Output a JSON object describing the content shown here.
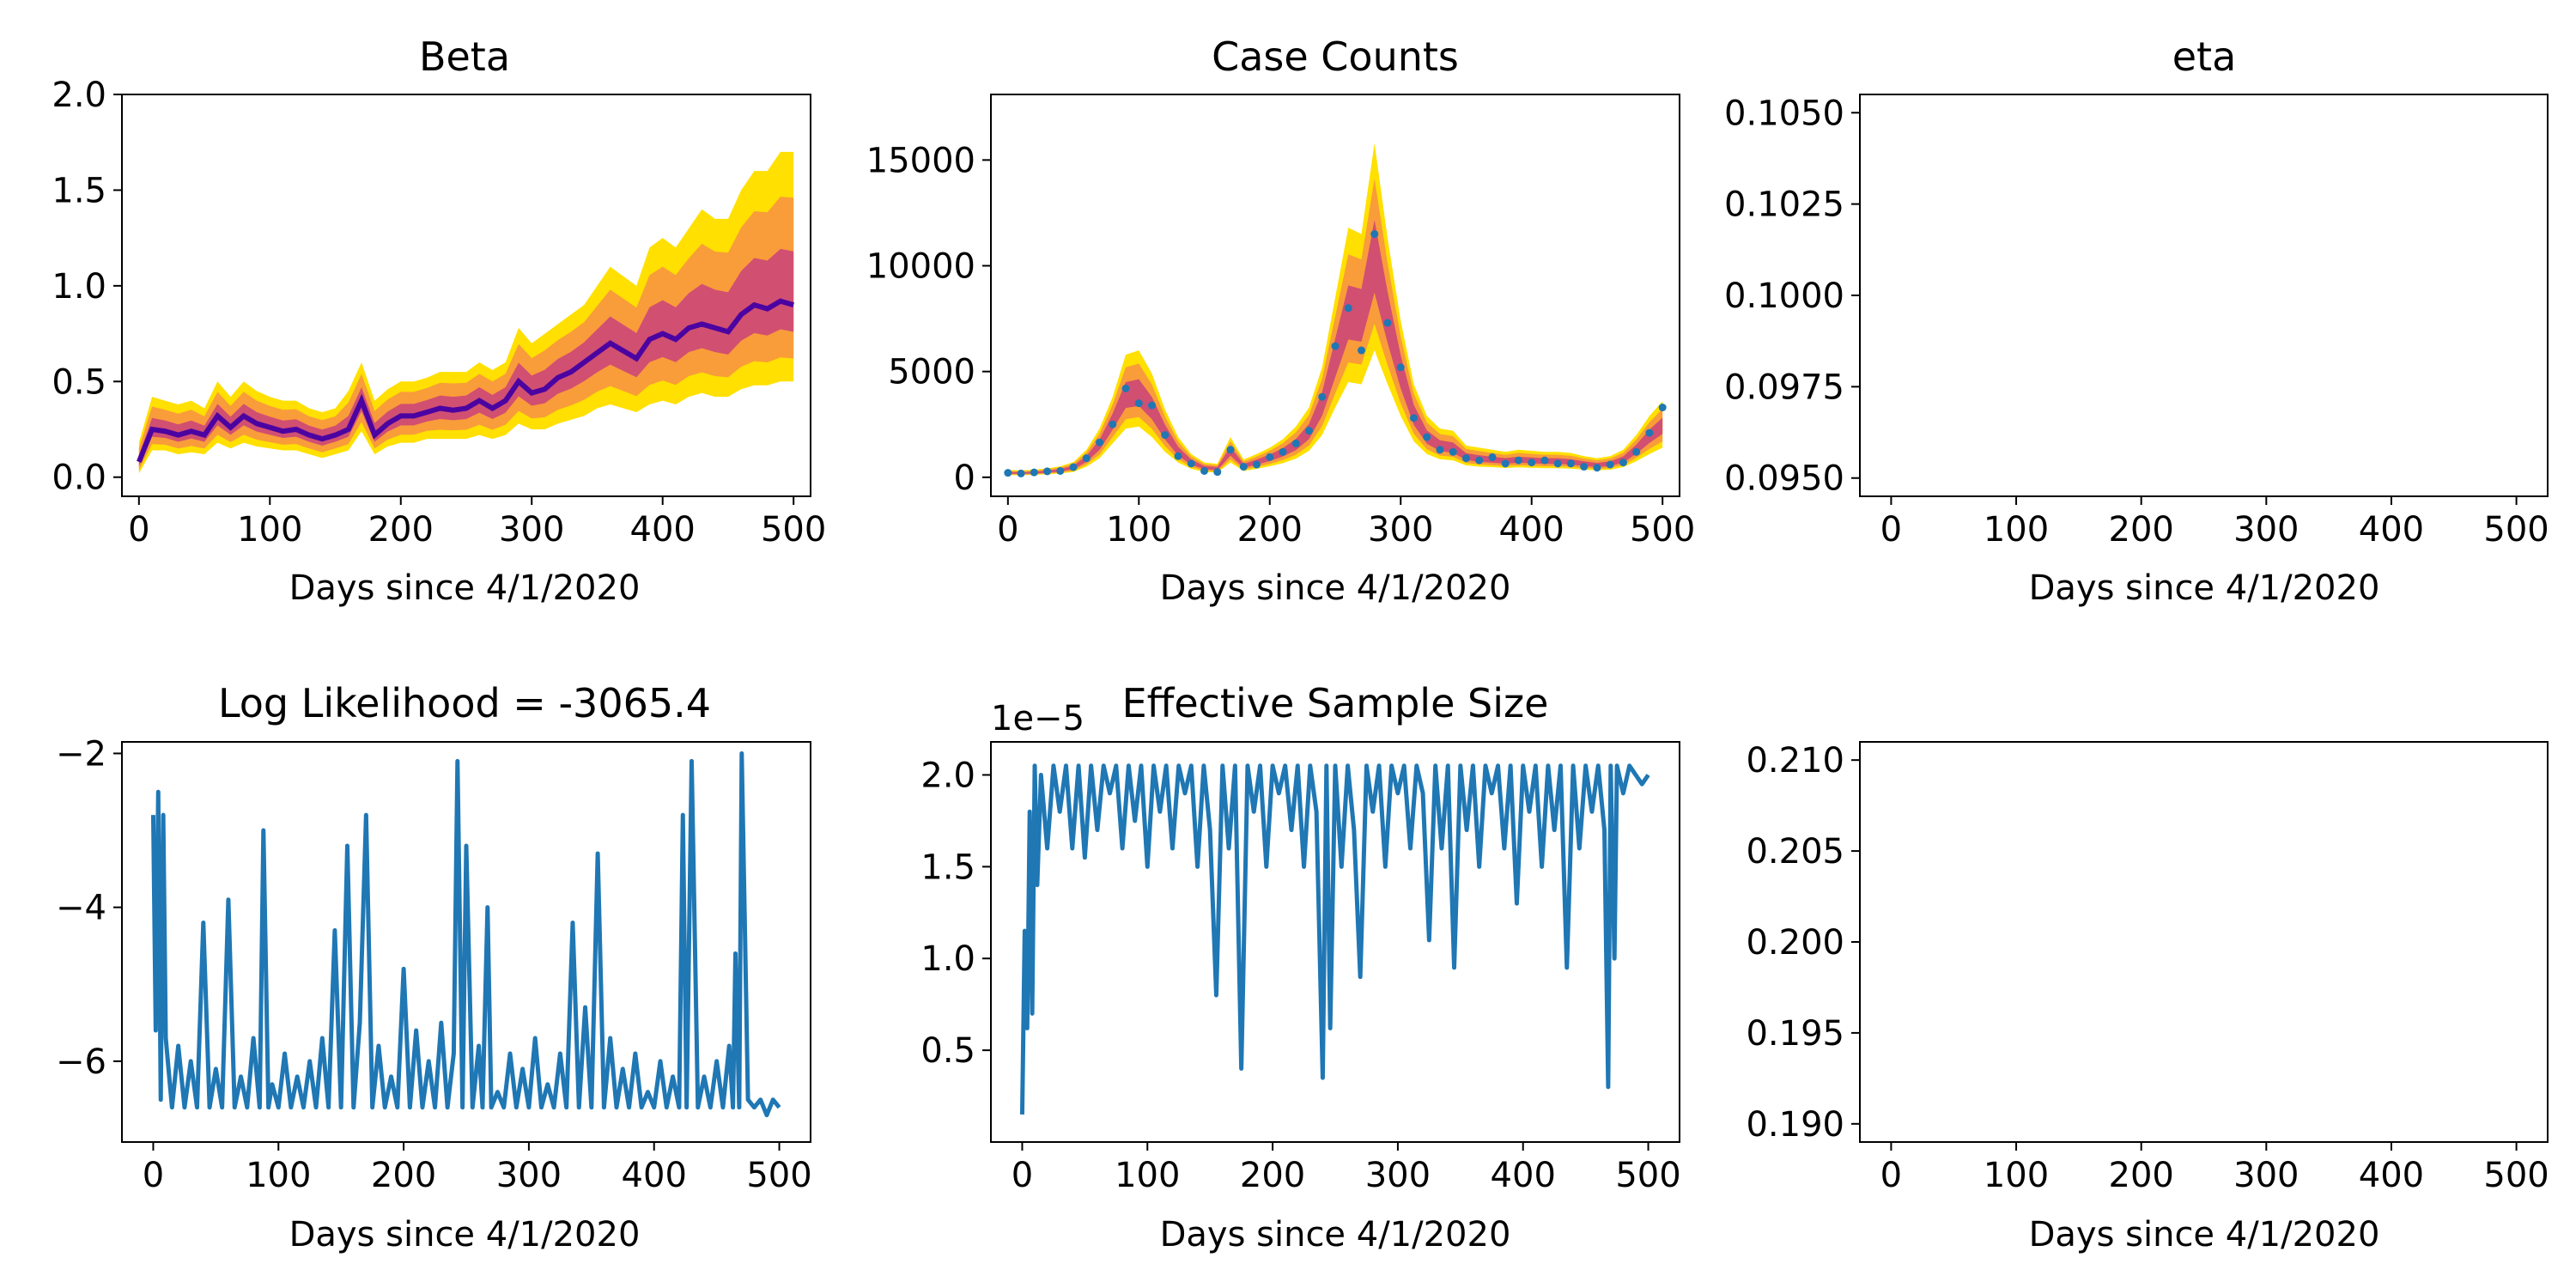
{
  "chart_data": [
    {
      "id": "beta",
      "type": "area",
      "title": "Beta",
      "xlabel": "Days since 4/1/2020",
      "ylabel": "",
      "xlim": [
        -13,
        513
      ],
      "ylim": [
        -0.1,
        2.0
      ],
      "xticks": [
        0,
        100,
        200,
        300,
        400,
        500
      ],
      "yticks": [
        0.0,
        0.5,
        1.0,
        1.5,
        2.0
      ],
      "ytick_labels": [
        "0.0",
        "0.5",
        "1.0",
        "1.5",
        "2.0"
      ],
      "grid": false,
      "colors": {
        "band_outer": "#ffe000",
        "band_mid": "#f89540",
        "band_inner": "#cc4778",
        "median": "#4b03a1"
      },
      "x": [
        0,
        10,
        20,
        30,
        40,
        50,
        60,
        70,
        80,
        90,
        100,
        110,
        120,
        130,
        140,
        150,
        160,
        170,
        180,
        190,
        200,
        210,
        220,
        230,
        240,
        250,
        260,
        270,
        280,
        290,
        300,
        310,
        320,
        330,
        340,
        350,
        360,
        370,
        380,
        390,
        400,
        410,
        420,
        430,
        440,
        450,
        460,
        470,
        480,
        490,
        500
      ],
      "series": [
        {
          "role": "upper",
          "values": [
            0.18,
            0.42,
            0.4,
            0.38,
            0.4,
            0.36,
            0.5,
            0.42,
            0.5,
            0.45,
            0.42,
            0.4,
            0.4,
            0.36,
            0.34,
            0.36,
            0.45,
            0.6,
            0.4,
            0.46,
            0.5,
            0.5,
            0.52,
            0.55,
            0.55,
            0.55,
            0.6,
            0.56,
            0.6,
            0.78,
            0.7,
            0.75,
            0.8,
            0.85,
            0.9,
            1.0,
            1.1,
            1.05,
            1.0,
            1.2,
            1.25,
            1.2,
            1.3,
            1.4,
            1.35,
            1.35,
            1.5,
            1.6,
            1.6,
            1.7,
            1.7
          ]
        },
        {
          "role": "median",
          "values": [
            0.08,
            0.25,
            0.24,
            0.22,
            0.24,
            0.22,
            0.32,
            0.26,
            0.32,
            0.28,
            0.26,
            0.24,
            0.25,
            0.22,
            0.2,
            0.22,
            0.25,
            0.4,
            0.22,
            0.28,
            0.32,
            0.32,
            0.34,
            0.36,
            0.35,
            0.36,
            0.4,
            0.36,
            0.4,
            0.5,
            0.44,
            0.46,
            0.52,
            0.55,
            0.6,
            0.65,
            0.7,
            0.66,
            0.62,
            0.72,
            0.75,
            0.72,
            0.78,
            0.8,
            0.78,
            0.76,
            0.85,
            0.9,
            0.88,
            0.92,
            0.9
          ]
        },
        {
          "role": "lower",
          "values": [
            0.02,
            0.14,
            0.14,
            0.12,
            0.13,
            0.12,
            0.18,
            0.15,
            0.18,
            0.16,
            0.15,
            0.14,
            0.14,
            0.12,
            0.1,
            0.12,
            0.14,
            0.24,
            0.12,
            0.16,
            0.18,
            0.18,
            0.2,
            0.2,
            0.2,
            0.2,
            0.22,
            0.2,
            0.22,
            0.28,
            0.25,
            0.25,
            0.28,
            0.3,
            0.32,
            0.36,
            0.38,
            0.36,
            0.34,
            0.38,
            0.4,
            0.38,
            0.42,
            0.44,
            0.42,
            0.42,
            0.46,
            0.48,
            0.48,
            0.5,
            0.5
          ]
        }
      ]
    },
    {
      "id": "cases",
      "type": "scatter",
      "title": "Case Counts",
      "xlabel": "Days since 4/1/2020",
      "ylabel": "",
      "xlim": [
        -13,
        513
      ],
      "ylim": [
        -900,
        18100
      ],
      "xticks": [
        0,
        100,
        200,
        300,
        400,
        500
      ],
      "yticks": [
        0,
        5000,
        10000,
        15000
      ],
      "ytick_labels": [
        "0",
        "5000",
        "10000",
        "15000"
      ],
      "grid": false,
      "colors": {
        "band_outer": "#ffe000",
        "band_mid": "#f89540",
        "band_inner": "#cc4778",
        "points": "#1f77b4"
      },
      "x": [
        0,
        10,
        20,
        30,
        40,
        50,
        60,
        70,
        80,
        90,
        100,
        110,
        120,
        130,
        140,
        150,
        160,
        170,
        180,
        190,
        200,
        210,
        220,
        230,
        240,
        250,
        260,
        270,
        280,
        290,
        300,
        310,
        320,
        330,
        340,
        350,
        360,
        370,
        380,
        390,
        400,
        410,
        420,
        430,
        440,
        450,
        460,
        470,
        480,
        490,
        500
      ],
      "series": [
        {
          "role": "upper",
          "values": [
            350,
            330,
            360,
            420,
            520,
            720,
            1300,
            2300,
            3800,
            5800,
            6000,
            4900,
            3200,
            1900,
            1100,
            700,
            640,
            1900,
            840,
            1100,
            1400,
            1800,
            2400,
            3300,
            5200,
            8500,
            11800,
            11500,
            15800,
            11300,
            7400,
            4400,
            2900,
            2300,
            2200,
            1500,
            1400,
            1300,
            1200,
            1300,
            1250,
            1200,
            1200,
            1150,
            1000,
            900,
            1000,
            1300,
            2000,
            2900,
            3600
          ]
        },
        {
          "role": "median",
          "values": [
            200,
            190,
            210,
            260,
            320,
            450,
            850,
            1500,
            2600,
            3800,
            3900,
            3200,
            2100,
            1200,
            700,
            450,
            400,
            1200,
            520,
            700,
            900,
            1150,
            1500,
            2100,
            3400,
            5500,
            7600,
            7500,
            10200,
            7400,
            4900,
            2900,
            1850,
            1450,
            1350,
            950,
            850,
            800,
            750,
            800,
            770,
            740,
            740,
            700,
            620,
            560,
            620,
            820,
            1300,
            1900,
            2400
          ]
        },
        {
          "role": "lower",
          "values": [
            100,
            100,
            110,
            140,
            180,
            250,
            500,
            900,
            1600,
            2300,
            2400,
            1900,
            1200,
            700,
            400,
            250,
            220,
            700,
            300,
            400,
            520,
            670,
            880,
            1250,
            2000,
            3300,
            4500,
            4400,
            6000,
            4400,
            2900,
            1700,
            1100,
            850,
            800,
            560,
            500,
            480,
            440,
            470,
            450,
            430,
            430,
            410,
            360,
            330,
            360,
            480,
            760,
            1100,
            1400
          ]
        },
        {
          "role": "observed",
          "values": [
            210,
            180,
            230,
            280,
            300,
            480,
            900,
            1650,
            2500,
            4200,
            3500,
            3400,
            2000,
            1000,
            650,
            300,
            250,
            1300,
            500,
            600,
            950,
            1200,
            1600,
            2200,
            3800,
            6200,
            8000,
            6000,
            11500,
            7300,
            5200,
            2800,
            1900,
            1300,
            1200,
            900,
            800,
            950,
            650,
            800,
            700,
            800,
            650,
            650,
            500,
            450,
            600,
            700,
            1200,
            2100,
            3300
          ]
        }
      ]
    },
    {
      "id": "eta",
      "type": "line",
      "title": "eta",
      "xlabel": "Days since 4/1/2020",
      "ylabel": "",
      "xlim": [
        -25,
        525
      ],
      "ylim": [
        0.0945,
        0.1055
      ],
      "xticks": [
        0,
        100,
        200,
        300,
        400,
        500
      ],
      "yticks": [
        0.095,
        0.0975,
        0.1,
        0.1025,
        0.105
      ],
      "ytick_labels": [
        "0.0950",
        "0.0975",
        "0.1000",
        "0.1025",
        "0.1050"
      ],
      "grid": false,
      "series": []
    },
    {
      "id": "loglik",
      "type": "line",
      "title": "Log Likelihood = -3065.4",
      "xlabel": "Days since 4/1/2020",
      "ylabel": "",
      "xlim": [
        -25,
        525
      ],
      "ylim": [
        -7.05,
        -1.85
      ],
      "xticks": [
        0,
        100,
        200,
        300,
        400,
        500
      ],
      "yticks": [
        -6,
        -4,
        -2
      ],
      "ytick_labels": [
        "−6",
        "−4",
        "−2"
      ],
      "grid": false,
      "colors": {
        "line": "#1f77b4"
      },
      "x": [
        0,
        2,
        4,
        6,
        8,
        10,
        15,
        20,
        25,
        30,
        35,
        40,
        45,
        50,
        55,
        60,
        65,
        70,
        75,
        80,
        85,
        88,
        92,
        95,
        100,
        105,
        110,
        115,
        120,
        125,
        130,
        135,
        140,
        145,
        150,
        155,
        160,
        165,
        170,
        175,
        180,
        185,
        190,
        195,
        200,
        205,
        210,
        215,
        220,
        225,
        230,
        235,
        240,
        243,
        247,
        250,
        255,
        260,
        263,
        267,
        270,
        275,
        280,
        285,
        290,
        295,
        300,
        305,
        310,
        315,
        320,
        325,
        330,
        335,
        340,
        345,
        350,
        355,
        360,
        365,
        370,
        375,
        380,
        385,
        390,
        395,
        400,
        405,
        410,
        415,
        420,
        423,
        426,
        430,
        435,
        440,
        445,
        450,
        455,
        460,
        463,
        465,
        468,
        470,
        475,
        480,
        485,
        490,
        495,
        500
      ],
      "series": [
        {
          "name": "",
          "values": [
            -2.8,
            -5.6,
            -2.5,
            -6.5,
            -2.8,
            -5.7,
            -6.6,
            -5.8,
            -6.6,
            -6.0,
            -6.6,
            -4.2,
            -6.6,
            -6.1,
            -6.6,
            -3.9,
            -6.6,
            -6.2,
            -6.6,
            -5.7,
            -6.6,
            -3.0,
            -6.6,
            -6.3,
            -6.6,
            -5.9,
            -6.6,
            -6.2,
            -6.6,
            -6.0,
            -6.6,
            -5.7,
            -6.6,
            -4.3,
            -6.6,
            -3.2,
            -6.6,
            -5.5,
            -2.8,
            -6.6,
            -5.8,
            -6.6,
            -6.2,
            -6.6,
            -4.8,
            -6.6,
            -5.6,
            -6.6,
            -6.0,
            -6.6,
            -5.5,
            -6.6,
            -5.9,
            -2.1,
            -6.6,
            -3.2,
            -6.6,
            -5.8,
            -6.6,
            -4.0,
            -6.6,
            -6.4,
            -6.6,
            -5.9,
            -6.6,
            -6.1,
            -6.6,
            -5.7,
            -6.6,
            -6.3,
            -6.6,
            -5.9,
            -6.6,
            -4.2,
            -6.6,
            -5.3,
            -6.6,
            -3.3,
            -6.6,
            -5.7,
            -6.6,
            -6.1,
            -6.6,
            -5.9,
            -6.6,
            -6.4,
            -6.6,
            -6.0,
            -6.6,
            -6.2,
            -6.6,
            -2.8,
            -6.6,
            -2.1,
            -6.6,
            -6.2,
            -6.6,
            -6.0,
            -6.6,
            -5.8,
            -6.6,
            -4.6,
            -6.6,
            -2.0,
            -6.5,
            -6.6,
            -6.5,
            -6.7,
            -6.5,
            -6.6
          ]
        }
      ]
    },
    {
      "id": "ess",
      "type": "line",
      "title": "Effective Sample Size",
      "xlabel": "Days since 4/1/2020",
      "ylabel": "",
      "offset_label": "1e−5",
      "xlim": [
        -25,
        525
      ],
      "ylim": [
        0.0,
        2.18
      ],
      "xticks": [
        0,
        100,
        200,
        300,
        400,
        500
      ],
      "yticks": [
        0.5,
        1.0,
        1.5,
        2.0
      ],
      "ytick_labels": [
        "0.5",
        "1.0",
        "1.5",
        "2.0"
      ],
      "grid": false,
      "colors": {
        "line": "#1f77b4"
      },
      "x": [
        0,
        2,
        4,
        6,
        8,
        10,
        12,
        15,
        20,
        25,
        30,
        35,
        40,
        45,
        50,
        55,
        60,
        65,
        70,
        75,
        80,
        85,
        90,
        95,
        100,
        105,
        110,
        115,
        120,
        125,
        130,
        135,
        140,
        145,
        150,
        155,
        160,
        165,
        170,
        175,
        180,
        185,
        190,
        195,
        200,
        205,
        210,
        215,
        220,
        225,
        230,
        235,
        240,
        243,
        246,
        250,
        255,
        260,
        265,
        270,
        275,
        280,
        285,
        290,
        295,
        300,
        305,
        310,
        315,
        320,
        325,
        330,
        335,
        340,
        345,
        350,
        355,
        360,
        365,
        370,
        375,
        380,
        385,
        390,
        395,
        400,
        405,
        410,
        415,
        420,
        425,
        430,
        435,
        440,
        445,
        450,
        455,
        460,
        465,
        468,
        470,
        473,
        475,
        480,
        485,
        490,
        495,
        500
      ],
      "series": [
        {
          "name": "",
          "values": [
            0.15,
            1.15,
            0.62,
            1.8,
            0.7,
            2.05,
            1.4,
            2.0,
            1.6,
            2.05,
            1.8,
            2.05,
            1.6,
            2.05,
            1.55,
            2.05,
            1.7,
            2.05,
            1.9,
            2.05,
            1.6,
            2.05,
            1.75,
            2.05,
            1.5,
            2.05,
            1.8,
            2.05,
            1.6,
            2.05,
            1.9,
            2.05,
            1.5,
            2.05,
            1.7,
            0.8,
            2.05,
            1.6,
            2.05,
            0.4,
            2.05,
            1.8,
            2.05,
            1.5,
            2.05,
            1.9,
            2.05,
            1.7,
            2.05,
            1.5,
            2.05,
            1.8,
            0.35,
            2.05,
            0.62,
            2.05,
            1.5,
            2.05,
            1.7,
            0.9,
            2.05,
            1.8,
            2.05,
            1.5,
            2.05,
            1.9,
            2.05,
            1.6,
            2.05,
            1.9,
            1.1,
            2.05,
            1.6,
            2.05,
            0.95,
            2.05,
            1.7,
            2.05,
            1.5,
            2.05,
            1.9,
            2.05,
            1.6,
            2.05,
            1.3,
            2.05,
            1.8,
            2.05,
            1.5,
            2.05,
            1.7,
            2.05,
            0.95,
            2.05,
            1.6,
            2.05,
            1.8,
            2.05,
            1.7,
            0.3,
            2.05,
            1.0,
            2.05,
            1.9,
            2.05,
            2.0,
            1.95,
            2.0
          ]
        }
      ]
    },
    {
      "id": "blank",
      "type": "line",
      "title": "",
      "xlabel": "Days since 4/1/2020",
      "ylabel": "",
      "xlim": [
        -25,
        525
      ],
      "ylim": [
        0.189,
        0.211
      ],
      "xticks": [
        0,
        100,
        200,
        300,
        400,
        500
      ],
      "yticks": [
        0.19,
        0.195,
        0.2,
        0.205,
        0.21
      ],
      "ytick_labels": [
        "0.190",
        "0.195",
        "0.200",
        "0.205",
        "0.210"
      ],
      "grid": false,
      "series": []
    }
  ]
}
